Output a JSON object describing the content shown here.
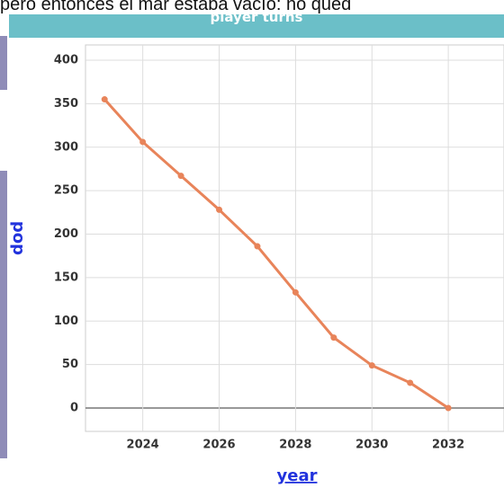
{
  "caption": "pero entonces el mar estaba vacío: no qued",
  "header": {
    "title": "player turns"
  },
  "chart_data": {
    "type": "line",
    "x_label": "year",
    "y_label": "pop",
    "x": [
      2023,
      2024,
      2025,
      2026,
      2027,
      2028,
      2029,
      2030,
      2031,
      2032
    ],
    "series": [
      {
        "color": "#e8845a",
        "values": [
          355,
          306,
          267,
          228,
          186,
          133,
          81,
          49,
          29,
          0
        ]
      }
    ],
    "xlim": [
      2022.5,
      2034
    ],
    "ylim": [
      0,
      400
    ],
    "xticks": [
      2024,
      2026,
      2028,
      2030,
      2032
    ],
    "yticks": [
      0,
      50,
      100,
      150,
      200,
      250,
      300,
      350,
      400
    ],
    "grid": true
  }
}
